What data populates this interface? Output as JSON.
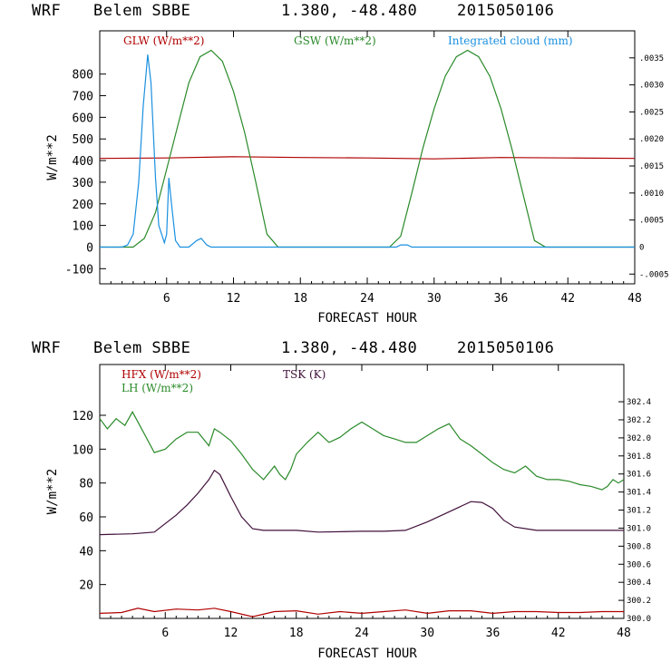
{
  "header_top": {
    "model": "WRF",
    "station": "Belem SBBE",
    "coords": "1.380, -48.480",
    "date": "2015050106"
  },
  "header_bottom": {
    "model": "WRF",
    "station": "Belem SBBE",
    "coords": "1.380, -48.480",
    "date": "2015050106"
  },
  "colors": {
    "red": "#b00000",
    "green": "#2a8a2a",
    "blue": "#1a90e0",
    "purple": "#40103a"
  },
  "chart_data": [
    {
      "type": "line",
      "xlabel": "FORECAST HOUR",
      "ylabel": "W/m**2",
      "xlim": [
        0,
        48
      ],
      "ylim": [
        -170,
        1000
      ],
      "xticks": [
        "6",
        "12",
        "18",
        "24",
        "30",
        "36",
        "42",
        "48"
      ],
      "yticks": [
        "-100",
        "0",
        "100",
        "200",
        "300",
        "400",
        "500",
        "600",
        "700",
        "800"
      ],
      "y2ticks": [
        "-.0005",
        "0",
        ".0005",
        ".0010",
        ".0015",
        ".0020",
        ".0025",
        ".0030",
        ".0035"
      ],
      "series": [
        {
          "name": "GLW (W/m**2)",
          "color": "#b00000",
          "x": [
            0,
            6,
            12,
            18,
            24,
            30,
            36,
            42,
            48
          ],
          "values": [
            410,
            412,
            418,
            414,
            412,
            408,
            414,
            412,
            410
          ]
        },
        {
          "name": "GSW (W/m**2)",
          "color": "#2a8a2a",
          "x": [
            0,
            2,
            3,
            4,
            5,
            6,
            7,
            8,
            9,
            10,
            11,
            12,
            13,
            14,
            15,
            16,
            24,
            26,
            27,
            28,
            29,
            30,
            31,
            32,
            33,
            34,
            35,
            36,
            37,
            38,
            39,
            40,
            48
          ],
          "values": [
            0,
            0,
            0,
            40,
            160,
            360,
            560,
            760,
            880,
            910,
            860,
            720,
            530,
            300,
            60,
            0,
            0,
            0,
            50,
            250,
            460,
            640,
            790,
            880,
            910,
            880,
            790,
            640,
            450,
            240,
            30,
            0,
            0
          ]
        },
        {
          "name": "Integrated cloud (mm)",
          "color": "#1a90e0",
          "x": [
            0,
            2,
            2.5,
            3,
            3.5,
            3.9,
            4.3,
            4.6,
            5,
            5.3,
            5.8,
            6,
            6.2,
            6.5,
            6.8,
            7.2,
            8,
            8.7,
            9.1,
            9.6,
            10,
            24,
            26.6,
            27,
            27.6,
            28,
            48
          ],
          "values": [
            0,
            0,
            10,
            60,
            300,
            650,
            890,
            760,
            320,
            100,
            20,
            60,
            320,
            170,
            30,
            0,
            0,
            30,
            40,
            10,
            0,
            0,
            0,
            10,
            10,
            0,
            0
          ]
        }
      ]
    },
    {
      "type": "line",
      "xlabel": "FORECAST HOUR",
      "ylabel": "W/m**2",
      "xlim": [
        0,
        48
      ],
      "ylim": [
        0,
        150
      ],
      "xticks": [
        "6",
        "12",
        "18",
        "24",
        "30",
        "36",
        "42",
        "48"
      ],
      "yticks": [
        "20",
        "40",
        "60",
        "80",
        "100",
        "120"
      ],
      "y2ticks": [
        "300.0",
        "300.2",
        "300.4",
        "300.6",
        "300.8",
        "301.0",
        "301.2",
        "301.4",
        "301.6",
        "301.8",
        "302.0",
        "302.2",
        "302.4"
      ],
      "series": [
        {
          "name": "HFX (W/m**2)",
          "color": "#b00000",
          "x": [
            0,
            2,
            3.5,
            5,
            7,
            9,
            10.5,
            12,
            14,
            16,
            18,
            20,
            22,
            24,
            26,
            28,
            30,
            32,
            34,
            36,
            38,
            40,
            42,
            44,
            46,
            48
          ],
          "values": [
            3,
            3.5,
            6,
            4,
            5.5,
            5,
            6,
            4,
            1,
            4,
            4.5,
            2.5,
            4,
            3,
            4,
            5,
            3,
            4.5,
            4.5,
            3,
            4,
            4,
            3.5,
            3.5,
            4,
            4
          ]
        },
        {
          "name": "LH (W/m**2)",
          "color": "#2a8a2a",
          "x": [
            0,
            0.7,
            1.5,
            2.3,
            3,
            4,
            5,
            6,
            7,
            8,
            9,
            10,
            10.5,
            11,
            12,
            13,
            14,
            15,
            16,
            16.5,
            17,
            17.5,
            18,
            19,
            20,
            21,
            22,
            23,
            24,
            25,
            26,
            27,
            28,
            29,
            30,
            31,
            32,
            33,
            34,
            35,
            36,
            37,
            38,
            39,
            40,
            41,
            42,
            43,
            44,
            45,
            46,
            46.5,
            47,
            47.5,
            48
          ],
          "values": [
            118,
            112,
            118,
            114,
            122,
            110,
            98,
            100,
            106,
            110,
            110,
            102,
            112,
            110,
            105,
            97,
            88,
            82,
            90,
            85,
            82,
            88,
            97,
            104,
            110,
            104,
            107,
            112,
            116,
            112,
            108,
            106,
            104,
            104,
            108,
            112,
            115,
            106,
            102,
            97,
            92,
            88,
            86,
            90,
            84,
            82,
            82,
            81,
            79,
            78,
            76,
            78,
            82,
            80,
            82
          ]
        },
        {
          "name": "TSK (K)",
          "color": "#40103a",
          "x": [
            0,
            3,
            5,
            7,
            8,
            9,
            10,
            10.5,
            11,
            12,
            13,
            14,
            15,
            18,
            20,
            24,
            26,
            28,
            30,
            32,
            34,
            35,
            36,
            37,
            38,
            40,
            44,
            48
          ],
          "values": [
            49.5,
            50,
            51,
            61,
            67,
            74,
            82,
            87.5,
            85,
            72,
            60,
            53,
            52,
            52,
            51,
            51.5,
            51.5,
            52,
            57,
            63,
            69,
            68.5,
            65,
            58,
            54,
            52,
            52,
            52
          ]
        }
      ]
    }
  ]
}
